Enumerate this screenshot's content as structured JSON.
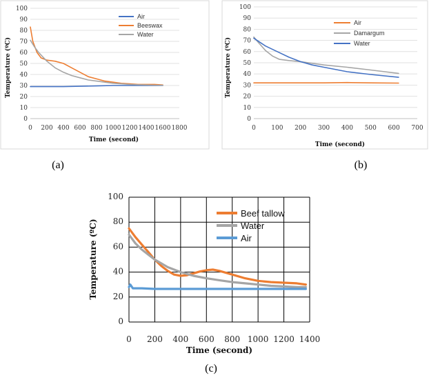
{
  "chart_data": [
    {
      "type": "line",
      "panel_label": "(a)",
      "xlabel": "Time (second)",
      "ylabel": "Temperature (ºC)",
      "xlim": [
        0,
        1800
      ],
      "ylim": [
        0,
        100
      ],
      "xticks": [
        "0",
        "200",
        "400",
        "600",
        "800",
        "1000",
        "1200",
        "1400",
        "1600",
        "1800"
      ],
      "yticks": [
        "0",
        "10",
        "20",
        "30",
        "40",
        "50",
        "60",
        "70",
        "80",
        "90",
        "100"
      ],
      "grid": "horizontal",
      "legend_position": "top-right",
      "series": [
        {
          "name": "Air",
          "color": "#4472C4",
          "x": [
            0,
            200,
            400,
            600,
            800,
            1000,
            1200,
            1400,
            1600
          ],
          "y": [
            29,
            29,
            29,
            29.3,
            29.6,
            30,
            30,
            30,
            30
          ]
        },
        {
          "name": "Beeswax",
          "color": "#ED7D31",
          "x": [
            0,
            30,
            80,
            130,
            200,
            300,
            400,
            500,
            600,
            700,
            800,
            900,
            1000,
            1100,
            1200,
            1300,
            1400,
            1500,
            1600
          ],
          "y": [
            83,
            70,
            60,
            55,
            53,
            52,
            50,
            46,
            42,
            38,
            36,
            34,
            33,
            32,
            31.5,
            31,
            31,
            31,
            30.5
          ]
        },
        {
          "name": "Water",
          "color": "#A5A5A5",
          "x": [
            0,
            50,
            100,
            150,
            200,
            300,
            400,
            500,
            600,
            700,
            800,
            900,
            1000,
            1100,
            1200,
            1300,
            1400,
            1500,
            1600
          ],
          "y": [
            71,
            65,
            60,
            56,
            52,
            46,
            42,
            39,
            37,
            35,
            34,
            33,
            32,
            31.5,
            31,
            30.7,
            30.5,
            30.3,
            30.2
          ]
        }
      ]
    },
    {
      "type": "line",
      "panel_label": "(b)",
      "xlabel": "Time (second)",
      "ylabel": "Temperature (ºC)",
      "xlim": [
        0,
        700
      ],
      "ylim": [
        0,
        100
      ],
      "xticks": [
        "0",
        "100",
        "200",
        "300",
        "400",
        "500",
        "600",
        "700"
      ],
      "yticks": [
        "0",
        "10",
        "20",
        "30",
        "40",
        "50",
        "60",
        "70",
        "80",
        "90",
        "100"
      ],
      "grid": "horizontal",
      "legend_position": "top-right",
      "series": [
        {
          "name": "Air",
          "color": "#ED7D31",
          "x": [
            0,
            100,
            200,
            300,
            400,
            500,
            620
          ],
          "y": [
            32,
            32,
            32,
            32,
            32.3,
            32,
            31.8
          ]
        },
        {
          "name": "Damargum",
          "color": "#A5A5A5",
          "x": [
            0,
            20,
            50,
            80,
            110,
            150,
            200,
            300,
            400,
            500,
            620
          ],
          "y": [
            73,
            68,
            61,
            56,
            53,
            52,
            51,
            48,
            46,
            43.5,
            40.5
          ]
        },
        {
          "name": "Water",
          "color": "#4472C4",
          "x": [
            0,
            50,
            100,
            150,
            200,
            250,
            300,
            400,
            500,
            620
          ],
          "y": [
            72,
            65,
            60,
            55,
            51,
            48,
            46,
            42,
            39.5,
            37
          ]
        }
      ]
    },
    {
      "type": "line",
      "panel_label": "(c)",
      "xlabel": "Time (second)",
      "ylabel": "Temperature (ºC)",
      "xlim": [
        0,
        1400
      ],
      "ylim": [
        0,
        100
      ],
      "xticks": [
        "0",
        "200",
        "400",
        "600",
        "800",
        "1000",
        "1200",
        "1400"
      ],
      "yticks": [
        "0",
        "20",
        "40",
        "60",
        "80",
        "100"
      ],
      "grid": "both",
      "legend_position": "top-right",
      "series": [
        {
          "name": "Beef tallow",
          "color": "#ED7D31",
          "x": [
            0,
            50,
            100,
            150,
            200,
            250,
            300,
            350,
            400,
            450,
            500,
            550,
            600,
            650,
            700,
            800,
            900,
            1000,
            1100,
            1200,
            1300,
            1370
          ],
          "y": [
            75,
            68,
            62,
            56,
            50,
            45,
            41,
            38,
            37,
            37.5,
            39,
            40.5,
            41.5,
            42,
            41,
            38,
            35,
            33,
            32,
            31.5,
            31,
            30
          ]
        },
        {
          "name": "Water",
          "color": "#A5A5A5",
          "x": [
            0,
            50,
            100,
            150,
            200,
            250,
            300,
            350,
            400,
            450,
            500,
            600,
            700,
            800,
            900,
            1000,
            1100,
            1200,
            1300,
            1370
          ],
          "y": [
            70,
            63,
            58,
            54,
            50,
            47,
            44,
            42,
            40,
            38.5,
            37,
            35,
            33.5,
            32,
            31,
            30,
            29,
            28.5,
            28,
            28
          ]
        },
        {
          "name": "Air",
          "color": "#5B9BD5",
          "x": [
            0,
            10,
            30,
            100,
            200,
            300,
            400,
            500,
            600,
            700,
            800,
            900,
            1000,
            1100,
            1200,
            1300,
            1370
          ],
          "y": [
            28,
            30,
            27,
            27,
            26.5,
            26.5,
            26.5,
            26.5,
            26.5,
            26.5,
            26.5,
            26.5,
            26.5,
            26.5,
            26.5,
            26.5,
            26.5
          ]
        }
      ]
    }
  ]
}
